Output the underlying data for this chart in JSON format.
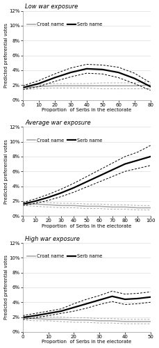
{
  "panels": [
    {
      "title": "Low war exposure",
      "xlabel": "Proportion  of Serbs in the electorate",
      "ylabel": "Predicted preferential votes",
      "xlim": [
        0,
        80
      ],
      "ylim": [
        0,
        0.12
      ],
      "xticks": [
        0,
        10,
        20,
        30,
        40,
        50,
        60,
        70,
        80
      ],
      "yticks": [
        0,
        0.02,
        0.04,
        0.06,
        0.08,
        0.1,
        0.12
      ],
      "serb_x": [
        0,
        10,
        20,
        30,
        40,
        50,
        60,
        70,
        80
      ],
      "serb_y": [
        0.0165,
        0.022,
        0.03,
        0.037,
        0.042,
        0.041,
        0.037,
        0.029,
        0.018
      ],
      "serb_lo": [
        0.014,
        0.018,
        0.025,
        0.031,
        0.036,
        0.035,
        0.03,
        0.022,
        0.013
      ],
      "serb_hi": [
        0.019,
        0.026,
        0.035,
        0.043,
        0.048,
        0.047,
        0.044,
        0.036,
        0.023
      ],
      "croat_x": [
        0,
        10,
        20,
        30,
        40,
        50,
        60,
        70,
        80
      ],
      "croat_y": [
        0.0165,
        0.018,
        0.019,
        0.019,
        0.019,
        0.019,
        0.019,
        0.019,
        0.02
      ],
      "croat_lo": [
        0.014,
        0.015,
        0.016,
        0.016,
        0.016,
        0.015,
        0.015,
        0.015,
        0.015
      ],
      "croat_hi": [
        0.019,
        0.021,
        0.022,
        0.022,
        0.022,
        0.023,
        0.023,
        0.023,
        0.025
      ]
    },
    {
      "title": "Average war exposure",
      "xlabel": "Proportion  of Serbs in the electorate",
      "ylabel": "Predicted preferential votes",
      "xlim": [
        0,
        100
      ],
      "ylim": [
        0,
        0.12
      ],
      "xticks": [
        0,
        10,
        20,
        30,
        40,
        50,
        60,
        70,
        80,
        90,
        100
      ],
      "yticks": [
        0,
        0.02,
        0.04,
        0.06,
        0.08,
        0.1,
        0.12
      ],
      "serb_x": [
        0,
        10,
        20,
        30,
        40,
        50,
        60,
        70,
        80,
        90,
        100
      ],
      "serb_y": [
        0.016,
        0.02,
        0.025,
        0.031,
        0.038,
        0.046,
        0.054,
        0.062,
        0.07,
        0.075,
        0.08
      ],
      "serb_lo": [
        0.014,
        0.017,
        0.021,
        0.026,
        0.032,
        0.039,
        0.046,
        0.053,
        0.06,
        0.064,
        0.068
      ],
      "serb_hi": [
        0.018,
        0.023,
        0.029,
        0.036,
        0.044,
        0.053,
        0.062,
        0.071,
        0.08,
        0.086,
        0.095
      ],
      "croat_x": [
        0,
        10,
        20,
        30,
        40,
        50,
        60,
        70,
        80,
        90,
        100
      ],
      "croat_y": [
        0.016,
        0.016,
        0.015,
        0.014,
        0.014,
        0.013,
        0.013,
        0.012,
        0.012,
        0.011,
        0.011
      ],
      "croat_lo": [
        0.014,
        0.013,
        0.012,
        0.011,
        0.011,
        0.01,
        0.01,
        0.009,
        0.009,
        0.008,
        0.008
      ],
      "croat_hi": [
        0.018,
        0.019,
        0.018,
        0.017,
        0.017,
        0.016,
        0.016,
        0.015,
        0.015,
        0.014,
        0.014
      ]
    },
    {
      "title": "High war exposure",
      "xlabel": "Proportion  of Serbs in the electorate",
      "ylabel": "Predicted preferential votes",
      "xlim": [
        0,
        50
      ],
      "ylim": [
        0,
        0.12
      ],
      "xticks": [
        0,
        10,
        20,
        30,
        40,
        50
      ],
      "yticks": [
        0,
        0.02,
        0.04,
        0.06,
        0.08,
        0.1,
        0.12
      ],
      "serb_x": [
        0,
        5,
        10,
        15,
        20,
        25,
        30,
        35,
        40,
        45,
        50
      ],
      "serb_y": [
        0.0195,
        0.022,
        0.025,
        0.028,
        0.033,
        0.038,
        0.043,
        0.048,
        0.044,
        0.045,
        0.047
      ],
      "serb_lo": [
        0.017,
        0.019,
        0.022,
        0.025,
        0.028,
        0.032,
        0.037,
        0.041,
        0.037,
        0.038,
        0.04
      ],
      "serb_hi": [
        0.022,
        0.025,
        0.028,
        0.031,
        0.038,
        0.044,
        0.049,
        0.055,
        0.051,
        0.052,
        0.054
      ],
      "croat_x": [
        0,
        5,
        10,
        15,
        20,
        25,
        30,
        35,
        40,
        45,
        50
      ],
      "croat_y": [
        0.0185,
        0.018,
        0.017,
        0.017,
        0.016,
        0.016,
        0.015,
        0.015,
        0.014,
        0.014,
        0.014
      ],
      "croat_lo": [
        0.016,
        0.015,
        0.015,
        0.014,
        0.013,
        0.013,
        0.012,
        0.012,
        0.011,
        0.011,
        0.011
      ],
      "croat_hi": [
        0.021,
        0.021,
        0.02,
        0.02,
        0.019,
        0.019,
        0.018,
        0.018,
        0.017,
        0.017,
        0.017
      ]
    }
  ],
  "serb_color": "#000000",
  "croat_color": "#aaaaaa",
  "serb_lw": 1.6,
  "croat_lw": 1.2,
  "ci_lw": 0.7,
  "legend_serb": "Serb name",
  "legend_croat": "Croat name",
  "bg_color": "#ffffff",
  "grid_color": "#dddddd"
}
